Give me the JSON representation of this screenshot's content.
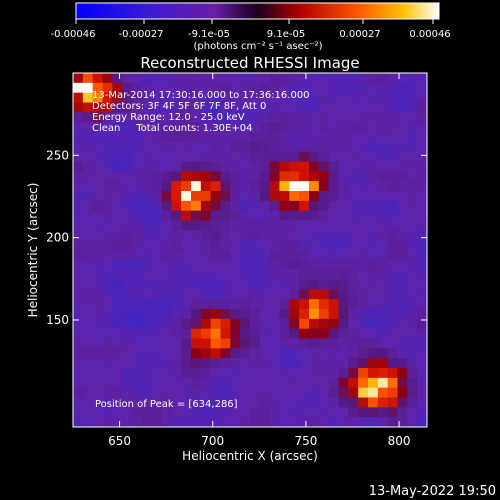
{
  "colorbar": {
    "tick_labels": [
      "-0.00046",
      "-0.00027",
      "-9.1e-05",
      "9.1e-05",
      "0.00027",
      "0.00046"
    ],
    "unit_label": "(photons cm⁻² s⁻¹ asec⁻²)"
  },
  "chart_data": {
    "type": "heatmap",
    "title": "Reconstructed RHESSI Image",
    "xlabel": "Heliocentric X (arcsec)",
    "ylabel": "Heliocentric Y (arcsec)",
    "xlim": [
      625,
      815
    ],
    "ylim": [
      85,
      300
    ],
    "x_ticks": [
      650,
      700,
      750,
      800
    ],
    "y_ticks": [
      150,
      200,
      250
    ],
    "grid": false,
    "colormap": "heat (blue-purple to red-yellow-white)",
    "value_range": [
      -0.00046,
      0.00046
    ],
    "peak": [
      634,
      286
    ],
    "bright_sources": [
      {
        "x": 634,
        "y": 290,
        "level": 1.0
      },
      {
        "x": 690,
        "y": 225,
        "level": 0.9
      },
      {
        "x": 745,
        "y": 232,
        "level": 0.95
      },
      {
        "x": 788,
        "y": 110,
        "level": 0.9
      },
      {
        "x": 700,
        "y": 140,
        "level": 0.7
      },
      {
        "x": 755,
        "y": 155,
        "level": 0.7
      }
    ],
    "annotations": [
      "13-Mar-2014 17:30:16.000 to 17:36:16.000",
      "Detectors: 3F 4F 5F 6F 7F 8F, Att 0",
      "Energy Range: 12.0 - 25.0 keV",
      "Clean     Total counts: 1.30E+04",
      "Position of Peak = [634,286]"
    ]
  },
  "footer": {
    "timestamp": "13-May-2022 19:50"
  }
}
